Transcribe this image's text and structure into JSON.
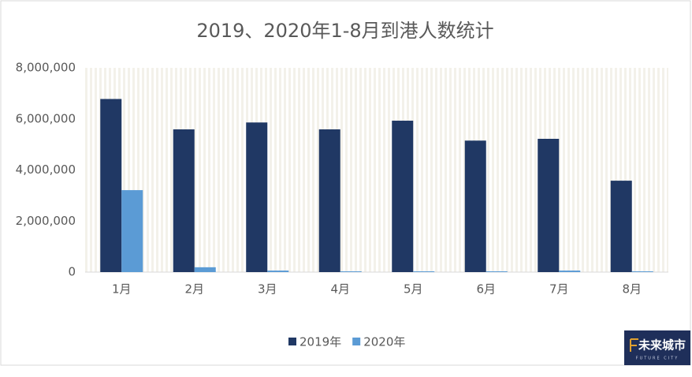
{
  "chart_data": {
    "type": "bar",
    "title": "2019、2020年1-8月到港人数统计",
    "categories": [
      "1月",
      "2月",
      "3月",
      "4月",
      "5月",
      "6月",
      "7月",
      "8月"
    ],
    "series": [
      {
        "name": "2019年",
        "color": "#203864",
        "values": [
          6780000,
          5590000,
          5860000,
          5590000,
          5930000,
          5150000,
          5220000,
          3580000
        ]
      },
      {
        "name": "2020年",
        "color": "#5b9bd5",
        "values": [
          3210000,
          190000,
          60000,
          30000,
          30000,
          30000,
          60000,
          30000
        ]
      }
    ],
    "ylim": [
      0,
      8000000
    ],
    "yticks": [
      0,
      {
        "value": 2000000,
        "label": "2,000,000"
      },
      {
        "value": 4000000,
        "label": "4,000,000"
      },
      {
        "value": 6000000,
        "label": "6,000,000"
      },
      {
        "value": 8000000,
        "label": "8,000,000"
      }
    ],
    "legend": "bottom"
  },
  "watermark": {
    "text": "未来城市",
    "subtext": "FUTURE CITY"
  }
}
